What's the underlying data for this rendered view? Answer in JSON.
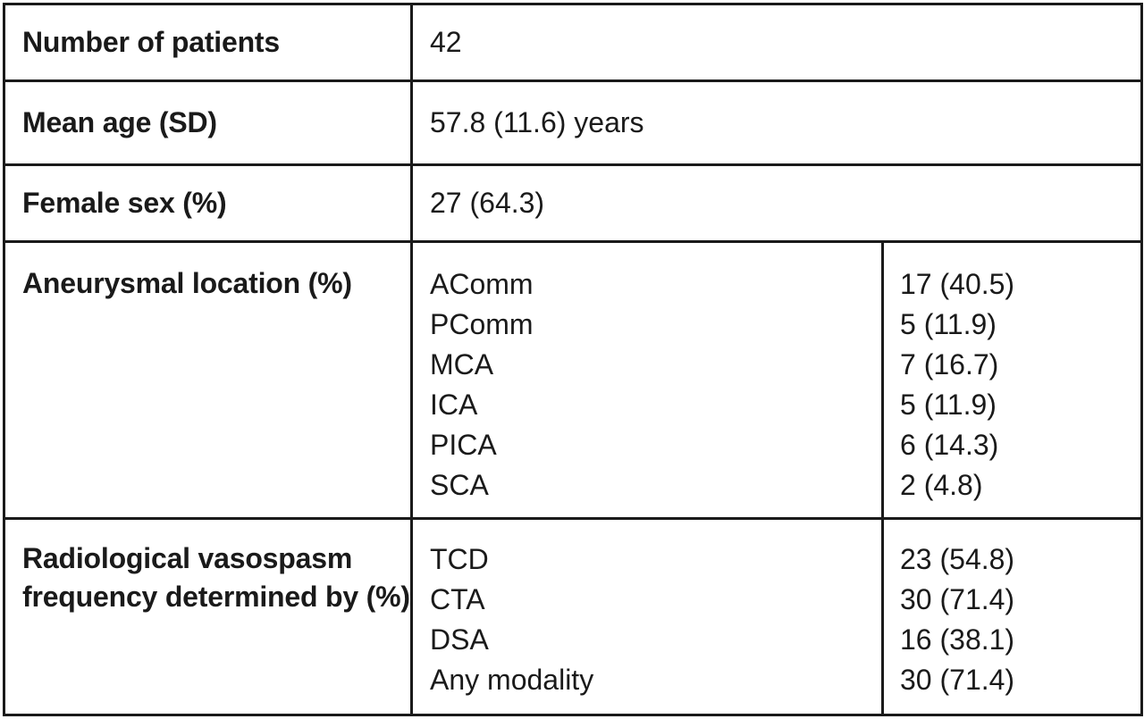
{
  "rows": [
    {
      "label": "Number of patients",
      "value": "42"
    },
    {
      "label": "Mean age (SD)",
      "value": "57.8 (11.6) years"
    },
    {
      "label": "Female sex (%)",
      "value": "27 (64.3)"
    }
  ],
  "location": {
    "label": "Aneurysmal location (%)",
    "items": [
      {
        "name": "AComm",
        "value": "17 (40.5)"
      },
      {
        "name": "PComm",
        "value": "5 (11.9)"
      },
      {
        "name": "MCA",
        "value": "7 (16.7)"
      },
      {
        "name": "ICA",
        "value": "5 (11.9)"
      },
      {
        "name": "PICA",
        "value": "6 (14.3)"
      },
      {
        "name": "SCA",
        "value": "2 (4.8)"
      }
    ]
  },
  "vasospasm": {
    "label": "Radiological vasospasm frequency determined by (%)",
    "items": [
      {
        "name": "TCD",
        "value": "23 (54.8)"
      },
      {
        "name": "CTA",
        "value": "30 (71.4)"
      },
      {
        "name": "DSA",
        "value": "16 (38.1)"
      },
      {
        "name": "Any modality",
        "value": "30 (71.4)"
      }
    ]
  }
}
